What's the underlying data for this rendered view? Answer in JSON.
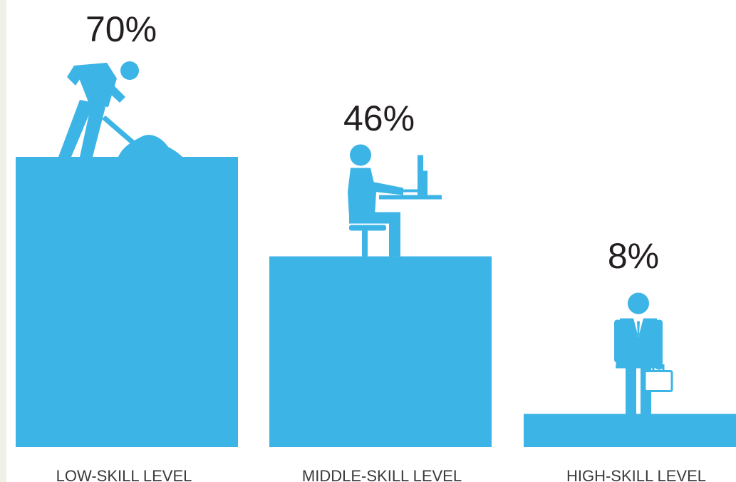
{
  "colors": {
    "bar": "#3cb4e6",
    "text": "#231f20",
    "category_text": "#3a3a3a",
    "left_edge": "#eef1e6",
    "briefcase": "#ffffff"
  },
  "chart_data": {
    "type": "bar",
    "categories": [
      "LOW-SKILL LEVEL",
      "MIDDLE-SKILL LEVEL",
      "HIGH-SKILL LEVEL"
    ],
    "values": [
      70,
      46,
      8
    ],
    "data_labels": [
      "70%",
      "46%",
      "8%"
    ],
    "icons": [
      "worker-shoveling-icon",
      "office-worker-at-desk-icon",
      "businessman-with-briefcase-icon"
    ],
    "title": "",
    "xlabel": "",
    "ylabel": "",
    "ylim": [
      0,
      70
    ],
    "grid": false,
    "legend": "none"
  }
}
